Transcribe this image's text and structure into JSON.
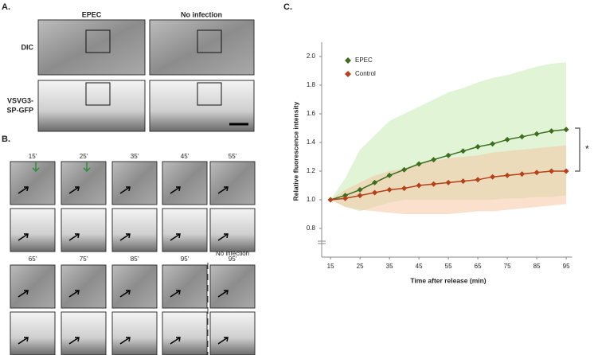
{
  "panel_a": {
    "label": "A.",
    "columns": [
      "EPEC",
      "No infection"
    ],
    "rows": [
      "DIC",
      [
        "VSVG3-",
        "SP-GFP"
      ]
    ]
  },
  "panel_b": {
    "label": "B.",
    "times_top": [
      "15'",
      "25'",
      "35'",
      "45'",
      "55'"
    ],
    "times_bottom": [
      "65'",
      "75'",
      "85'",
      "95'",
      "95'"
    ],
    "no_infection": "No infection"
  },
  "panel_c_label": "C.",
  "chart_data": {
    "type": "line",
    "x_label": "Time after release (min)",
    "y_label": "Relative fluorescence intensity",
    "x": [
      15,
      20,
      25,
      30,
      35,
      40,
      45,
      50,
      55,
      60,
      65,
      70,
      75,
      80,
      85,
      90,
      95
    ],
    "series": [
      {
        "name": "EPEC",
        "color": "#3d6e1f",
        "band_color": "#c9ebb5",
        "values": [
          1.0,
          1.03,
          1.07,
          1.12,
          1.17,
          1.21,
          1.25,
          1.28,
          1.31,
          1.34,
          1.37,
          1.39,
          1.42,
          1.44,
          1.46,
          1.48,
          1.49
        ],
        "upper": [
          1.0,
          1.15,
          1.35,
          1.45,
          1.55,
          1.6,
          1.65,
          1.7,
          1.75,
          1.78,
          1.82,
          1.85,
          1.87,
          1.9,
          1.93,
          1.95,
          1.96
        ],
        "lower": [
          1.0,
          0.95,
          0.92,
          0.95,
          0.98,
          1.0,
          1.0,
          1.0,
          1.0,
          1.0,
          1.0,
          1.0,
          1.01,
          1.01,
          1.02,
          1.02,
          1.03
        ]
      },
      {
        "name": "Control",
        "color": "#b5411a",
        "band_color": "#f6c7a4",
        "values": [
          1.0,
          1.01,
          1.03,
          1.05,
          1.07,
          1.08,
          1.1,
          1.11,
          1.12,
          1.13,
          1.14,
          1.16,
          1.17,
          1.18,
          1.19,
          1.2,
          1.2
        ],
        "upper": [
          1.0,
          1.07,
          1.12,
          1.17,
          1.2,
          1.22,
          1.25,
          1.27,
          1.29,
          1.3,
          1.31,
          1.33,
          1.34,
          1.35,
          1.36,
          1.37,
          1.38
        ],
        "lower": [
          1.0,
          0.95,
          0.93,
          0.92,
          0.91,
          0.9,
          0.9,
          0.9,
          0.9,
          0.91,
          0.92,
          0.92,
          0.93,
          0.94,
          0.95,
          0.96,
          0.97
        ]
      }
    ],
    "xlim": [
      12,
      97
    ],
    "xticks": [
      15,
      25,
      35,
      45,
      55,
      65,
      75,
      85,
      95
    ],
    "ylim": [
      0.6,
      2.1
    ],
    "yticks": [
      {
        "value": 0.8,
        "label": "0.8"
      },
      {
        "value": 1.0,
        "label": "1.0"
      },
      {
        "value": 1.2,
        "label": "1.2"
      },
      {
        "value": 1.4,
        "label": "1.4"
      },
      {
        "value": 1.6,
        "label": "1.6"
      },
      {
        "value": 1.8,
        "label": "1.8"
      },
      {
        "value": 2.0,
        "label": "2.0"
      }
    ],
    "legend": "top-left",
    "annotation": "*"
  }
}
